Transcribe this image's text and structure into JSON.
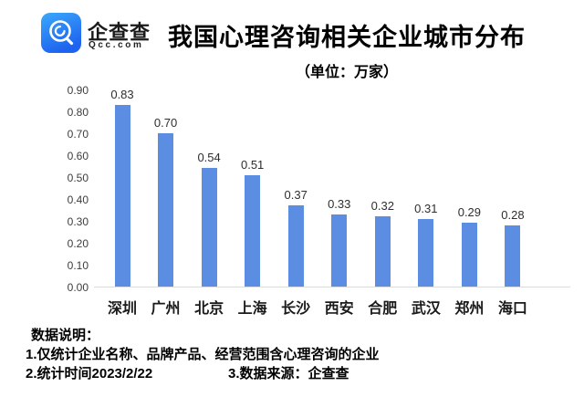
{
  "header": {
    "logo": {
      "brand": "企查查",
      "domain": "Qcc.com",
      "gradient_top": "#3BA8FB",
      "gradient_bottom": "#1E63EF"
    },
    "title": "我国心理咨询相关企业城市分布",
    "subtitle": "（单位：万家）"
  },
  "chart_data": {
    "type": "bar",
    "title": "我国心理咨询相关企业城市分布",
    "unit": "万家",
    "categories": [
      "深圳",
      "广州",
      "北京",
      "上海",
      "长沙",
      "西安",
      "合肥",
      "武汉",
      "郑州",
      "海口"
    ],
    "values": [
      0.83,
      0.7,
      0.54,
      0.51,
      0.37,
      0.33,
      0.32,
      0.31,
      0.29,
      0.28
    ],
    "value_labels": [
      "0.83",
      "0.70",
      "0.54",
      "0.51",
      "0.37",
      "0.33",
      "0.32",
      "0.31",
      "0.29",
      "0.28"
    ],
    "xlabel": "",
    "ylabel": "",
    "ylim": [
      0,
      0.9
    ],
    "y_ticks": [
      "0.00",
      "0.10",
      "0.20",
      "0.30",
      "0.40",
      "0.50",
      "0.60",
      "0.70",
      "0.80",
      "0.90"
    ],
    "grid": false,
    "legend_position": "none",
    "bar_color": "#5B8EE3",
    "axis_line_color": "#DCDCDC"
  },
  "notes": {
    "heading": "数据说明：",
    "line1": "1.仅统计企业名称、品牌产品、经营范围含心理咨询的企业",
    "line2a": "2.统计时间2023/2/22",
    "line2b": "3.数据来源：企查查"
  }
}
